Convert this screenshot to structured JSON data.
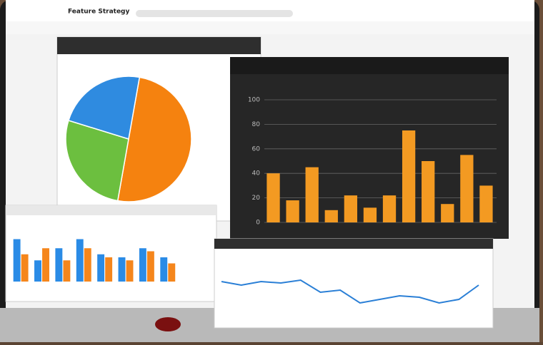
{
  "header": {
    "title": "Feature Strategy"
  },
  "chart_data": [
    {
      "type": "pie",
      "values": [
        50,
        27,
        23
      ],
      "colors": [
        "#f5820f",
        "#6cbf3f",
        "#2f8be0"
      ]
    },
    {
      "type": "bar",
      "values": [
        40,
        18,
        45,
        10,
        22,
        12,
        22,
        75,
        50,
        15,
        55,
        30
      ],
      "color": "#f39a22",
      "ylim": [
        0,
        100
      ],
      "yticks": [
        0,
        20,
        40,
        60,
        80,
        100
      ],
      "grid": true
    },
    {
      "type": "bar",
      "series": [
        {
          "color": "#2a8be6",
          "values": [
            70,
            35,
            55,
            70,
            45,
            40,
            55,
            40
          ]
        },
        {
          "color": "#f5861c",
          "values": [
            45,
            55,
            35,
            55,
            40,
            35,
            50,
            30
          ]
        }
      ],
      "ylim": [
        0,
        100
      ]
    },
    {
      "type": "line",
      "values": [
        60,
        55,
        60,
        58,
        62,
        45,
        48,
        30,
        35,
        40,
        38,
        30,
        35,
        55
      ],
      "color": "#2a7fd6",
      "ylim": [
        0,
        100
      ]
    }
  ]
}
